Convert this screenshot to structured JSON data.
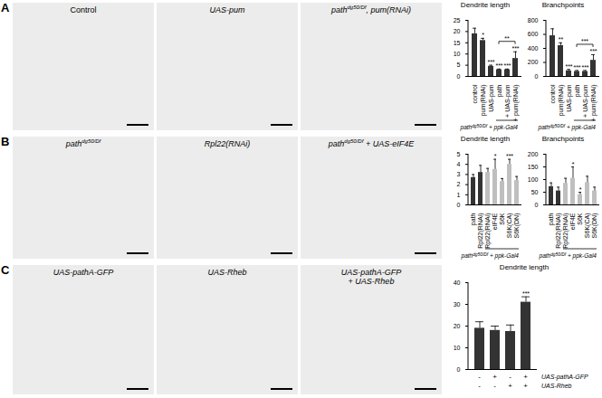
{
  "figure": {
    "panels": [
      {
        "letter": "A",
        "images": [
          {
            "italic": false,
            "lines": [
              [
                {
                  "text": "Control"
                }
              ]
            ]
          },
          {
            "italic": true,
            "lines": [
              [
                {
                  "text": "UAS-pum"
                }
              ]
            ]
          },
          {
            "italic": true,
            "lines": [
              [
                {
                  "text": "path"
                },
                {
                  "text": "dg50/Df",
                  "sup": true
                },
                {
                  "text": ", pum(RNAi)"
                }
              ]
            ]
          }
        ]
      },
      {
        "letter": "B",
        "images": [
          {
            "italic": true,
            "lines": [
              [
                {
                  "text": "path"
                },
                {
                  "text": "dg50/Df",
                  "sup": true
                }
              ]
            ]
          },
          {
            "italic": true,
            "lines": [
              [
                {
                  "text": "Rpl22(RNAi)"
                }
              ]
            ]
          },
          {
            "italic": true,
            "lines": [
              [
                {
                  "text": "path"
                },
                {
                  "text": "dg50/Df",
                  "sup": true
                },
                {
                  "text": " + UAS-eIF4E"
                }
              ]
            ]
          }
        ]
      },
      {
        "letter": "C",
        "images": [
          {
            "italic": true,
            "lines": [
              [
                {
                  "text": "UAS-pathA-GFP"
                }
              ]
            ]
          },
          {
            "italic": true,
            "lines": [
              [
                {
                  "text": "UAS-Rheb"
                }
              ]
            ]
          },
          {
            "italic": true,
            "lines": [
              [
                {
                  "text": "UAS-pathA-GFP"
                }
              ],
              [
                {
                  "text": "+ UAS-Rheb"
                }
              ]
            ]
          }
        ]
      }
    ]
  },
  "chart_data": [
    {
      "type": "bar",
      "title": "Dendrite length",
      "categories": [
        "control",
        "pum(RNAi)",
        "UAS-pum",
        "path",
        "+ UAS-pum",
        "+ pum(RNAi)"
      ],
      "values": [
        19,
        16,
        4.5,
        3,
        3,
        8
      ],
      "errors": [
        2.5,
        1,
        0.5,
        0.3,
        0.3,
        3
      ],
      "colors": [
        "#333333",
        "#333333",
        "#333333",
        "#333333",
        "#333333",
        "#333333"
      ],
      "significance": [
        null,
        "*",
        "***",
        "***",
        "***",
        "***"
      ],
      "comparisons": [
        {
          "from": 3,
          "to": 5,
          "label": "**"
        }
      ],
      "group": {
        "from": 3,
        "to": 5,
        "italic": true,
        "label": [
          {
            "text": "path"
          },
          {
            "text": "dg50/Df",
            "sup": true
          },
          {
            "text": " + ppk-Gal4"
          }
        ]
      },
      "ylim": [
        0,
        25
      ],
      "yticks": [
        0,
        5,
        10,
        15,
        20,
        25
      ]
    },
    {
      "type": "bar",
      "title": "Branchpoints",
      "categories": [
        "control",
        "pum(RNAi)",
        "UAS-pum",
        "path",
        "+ UAS-pum",
        "+ pum(RNAi)"
      ],
      "values": [
        580,
        440,
        80,
        70,
        70,
        230
      ],
      "errors": [
        100,
        40,
        20,
        15,
        15,
        80
      ],
      "colors": [
        "#333333",
        "#333333",
        "#333333",
        "#333333",
        "#333333",
        "#333333"
      ],
      "significance": [
        null,
        "**",
        "***",
        "***",
        "***",
        "***"
      ],
      "comparisons": [
        {
          "from": 3,
          "to": 5,
          "label": "***"
        }
      ],
      "group": {
        "from": 3,
        "to": 5,
        "italic": true,
        "label": [
          {
            "text": "path"
          },
          {
            "text": "dg50/Df",
            "sup": true
          },
          {
            "text": " + ppk-Gal4"
          }
        ]
      },
      "ylim": [
        0,
        800
      ],
      "yticks": [
        0,
        200,
        400,
        600,
        800
      ]
    },
    {
      "type": "bar",
      "title": "Dendrite length",
      "categories": [
        "path",
        "Rpl22(RNAi)",
        "Rpl22(RNAi)",
        "eIF4E",
        "S6K",
        "S6K(CA)",
        "S6K(DN)"
      ],
      "values": [
        2.7,
        3.2,
        3.2,
        3.5,
        2.3,
        4.0,
        2.4
      ],
      "errors": [
        0.3,
        0.7,
        0.4,
        1.0,
        0.3,
        0.5,
        0.4
      ],
      "colors": [
        "#333333",
        "#333333",
        "#bfbfbf",
        "#bfbfbf",
        "#bfbfbf",
        "#bfbfbf",
        "#bfbfbf"
      ],
      "significance": [
        null,
        null,
        null,
        "*",
        null,
        "***",
        null
      ],
      "group": {
        "from": 2,
        "to": 6,
        "italic": true,
        "label": [
          {
            "text": "path"
          },
          {
            "text": "dg50/Df",
            "sup": true
          },
          {
            "text": " + ppk-Gal4"
          }
        ]
      },
      "ylim": [
        0,
        5
      ],
      "yticks": [
        0,
        1,
        2,
        3,
        4,
        5
      ]
    },
    {
      "type": "bar",
      "title": "Branchpoints",
      "categories": [
        "path",
        "Rpl22(RNAi)",
        "Rpl22(RNAi)",
        "eIF4E",
        "S6K",
        "S6K(CA)",
        "S6K(DN)"
      ],
      "values": [
        72,
        55,
        85,
        105,
        40,
        88,
        55
      ],
      "errors": [
        15,
        15,
        20,
        45,
        10,
        25,
        15
      ],
      "colors": [
        "#333333",
        "#333333",
        "#bfbfbf",
        "#bfbfbf",
        "#bfbfbf",
        "#bfbfbf",
        "#bfbfbf"
      ],
      "significance": [
        null,
        null,
        null,
        "*",
        "*",
        null,
        null
      ],
      "group": {
        "from": 2,
        "to": 6,
        "italic": true,
        "label": [
          {
            "text": "path"
          },
          {
            "text": "dg50/Df",
            "sup": true
          },
          {
            "text": " + ppk-Gal4"
          }
        ]
      },
      "ylim": [
        0,
        200
      ],
      "yticks": [
        0,
        50,
        100,
        150,
        200
      ]
    },
    {
      "type": "bar",
      "title": "Dendrite length",
      "categories": [
        null,
        null,
        null,
        null
      ],
      "values": [
        19,
        18,
        17.5,
        31
      ],
      "errors": [
        3,
        2,
        3,
        2.5
      ],
      "colors": [
        "#333333",
        "#333333",
        "#333333",
        "#333333"
      ],
      "significance": [
        null,
        null,
        null,
        "***"
      ],
      "conditions": [
        {
          "label": "UAS-pathA-GFP",
          "marks": [
            "-",
            "+",
            "-",
            "+"
          ]
        },
        {
          "label": "UAS-Rheb",
          "marks": [
            "-",
            "-",
            "+",
            "+"
          ]
        }
      ],
      "ylim": [
        0,
        40
      ],
      "yticks": [
        0,
        10,
        20,
        30,
        40
      ]
    }
  ]
}
